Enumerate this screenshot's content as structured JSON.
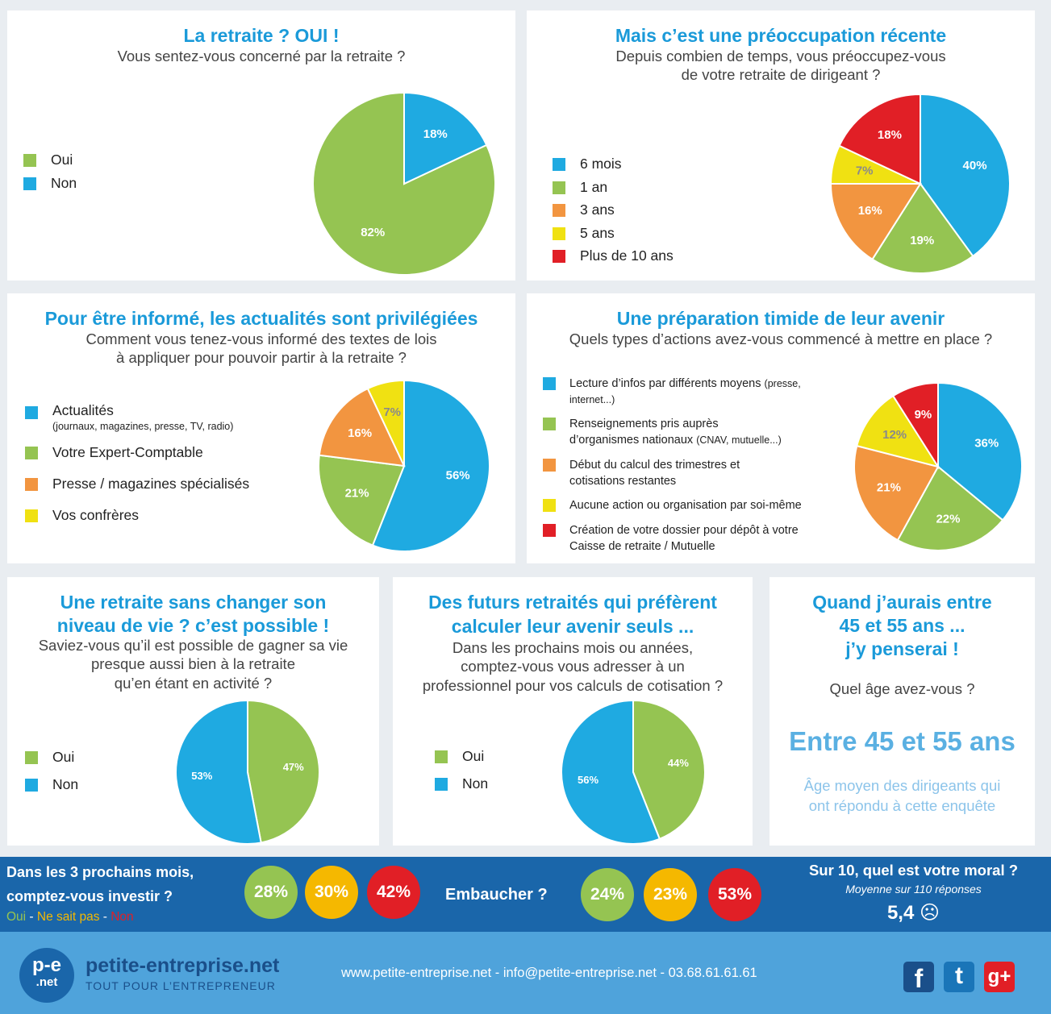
{
  "colors": {
    "blue": "#1faae1",
    "green": "#95c452",
    "orange": "#f29540",
    "yellow": "#f0e112",
    "red": "#e11f26",
    "title_blue": "#1a9ad9",
    "bar_blue": "#1a66aa",
    "footer_blue": "#4fa3db"
  },
  "p1": {
    "title": "La retraite ? OUI !",
    "subtitle": "Vous sentez-vous concerné par la retraite ?"
  },
  "p2": {
    "title": "Mais c’est une préoccupation récente",
    "subtitle1": "Depuis combien de temps, vous préoccupez-vous",
    "subtitle2": "de votre retraite de dirigeant ?"
  },
  "p3": {
    "title": "Pour être informé, les actualités sont privilégiées",
    "subtitle1": "Comment vous tenez-vous informé des textes de lois",
    "subtitle2": "à appliquer pour pouvoir partir à la retraite ?",
    "note0": "(journaux, magazines, presse, TV, radio)"
  },
  "p4": {
    "title": "Une préparation timide de leur avenir",
    "subtitle": "Quels types d’actions avez-vous commencé à mettre en place ?",
    "l0a": "Lecture d’infos par différents moyens",
    "l0b": "(presse,",
    "l0c": "internet...)",
    "l1a": "Renseignements pris auprès",
    "l1b": "d’organismes nationaux",
    "l1c": "(CNAV, mutuelle...)",
    "l2a": "Début du calcul des trimestres et",
    "l2b": "cotisations restantes",
    "l3a": "Aucune action ou organisation par soi-même",
    "l4a": "Création de votre dossier pour dépôt à votre",
    "l4b": "Caisse de retraite / Mutuelle"
  },
  "p5": {
    "title1": "Une retraite sans changer son",
    "title2": "niveau de vie ? c’est possible !",
    "sub1": "Saviez-vous qu’il est possible de gagner sa vie",
    "sub2": "presque aussi bien à la retraite",
    "sub3": "qu’en étant en activité ?"
  },
  "p6": {
    "title1": "Des futurs retraités qui préfèrent",
    "title2": "calculer leur avenir seuls ...",
    "sub1": "Dans les prochains mois ou années,",
    "sub2": "comptez-vous vous adresser à un",
    "sub3": "professionnel pour vos calculs de cotisation ?"
  },
  "p7": {
    "title1": "Quand j’aurais entre",
    "title2": "45 et 55 ans ...",
    "title3": "j’y penserai !",
    "question": "Quel âge avez-vous ?",
    "big": "Entre 45 et 55 ans",
    "note1": "Âge moyen des dirigeants qui",
    "note2": "ont répondu à cette enquête"
  },
  "bar": {
    "invest1": "Dans les 3 prochains mois,",
    "invest2": "comptez-vous investir ?",
    "oui": "Oui",
    "sep": " - ",
    "nsp": "Ne sait pas",
    "non": "Non",
    "invest_values": [
      "28%",
      "30%",
      "42%"
    ],
    "hire": "Embaucher ?",
    "hire_values": [
      "24%",
      "23%",
      "53%"
    ],
    "moral_title": "Sur 10, quel est votre moral ?",
    "moral_sub": "Moyenne sur 110 réponses",
    "moral_value": "5,4",
    "moral_icon": "☹"
  },
  "footer": {
    "logo_top": "p-e",
    "logo_bottom": ".net",
    "brand": "petite-entreprise.net",
    "tagline": "TOUT POUR L’ENTREPRENEUR",
    "contact": "www.petite-entreprise.net - info@petite-entreprise.net - 03.68.61.61.61",
    "facebook": "f",
    "twitter": "t",
    "gplus": "g+"
  },
  "chart_data": [
    {
      "type": "pie",
      "id": "c1",
      "title": "La retraite ? OUI !",
      "labels": [
        "Oui",
        "Non"
      ],
      "values": [
        82,
        18
      ],
      "value_labels": [
        "82%",
        "18%"
      ],
      "colors": [
        "#95c452",
        "#1faae1"
      ]
    },
    {
      "type": "pie",
      "id": "c2",
      "title": "Mais c’est une préoccupation récente",
      "labels": [
        "6 mois",
        "1 an",
        "3 ans",
        "5 ans",
        "Plus de 10 ans"
      ],
      "values": [
        40,
        19,
        16,
        7,
        18
      ],
      "value_labels": [
        "40%",
        "19%",
        "16%",
        "7%",
        "18%"
      ],
      "colors": [
        "#1faae1",
        "#95c452",
        "#f29540",
        "#f0e112",
        "#e11f26"
      ]
    },
    {
      "type": "pie",
      "id": "c3",
      "title": "Pour être informé, les actualités sont privilégiées",
      "labels": [
        "Actualités",
        "Votre Expert-Comptable",
        "Presse / magazines spécialisés",
        "Vos confrères"
      ],
      "values": [
        56,
        21,
        16,
        7
      ],
      "value_labels": [
        "56%",
        "21%",
        "16%",
        "7%"
      ],
      "colors": [
        "#1faae1",
        "#95c452",
        "#f29540",
        "#f0e112"
      ]
    },
    {
      "type": "pie",
      "id": "c4",
      "title": "Une préparation timide de leur avenir",
      "labels": [
        "Lecture d’infos par différents moyens",
        "Renseignements pris auprès d’organismes nationaux",
        "Début du calcul des trimestres et cotisations restantes",
        "Aucune action ou organisation par soi-même",
        "Création de votre dossier pour dépôt à votre Caisse de retraite / Mutuelle"
      ],
      "values": [
        36,
        22,
        21,
        12,
        9
      ],
      "value_labels": [
        "36%",
        "22%",
        "21%",
        "12%",
        "9%"
      ],
      "colors": [
        "#1faae1",
        "#95c452",
        "#f29540",
        "#f0e112",
        "#e11f26"
      ]
    },
    {
      "type": "pie",
      "id": "c5",
      "title": "Une retraite sans changer son niveau de vie ? c’est possible !",
      "labels": [
        "Oui",
        "Non"
      ],
      "values": [
        47,
        53
      ],
      "value_labels": [
        "47%",
        "53%"
      ],
      "colors": [
        "#95c452",
        "#1faae1"
      ]
    },
    {
      "type": "pie",
      "id": "c6",
      "title": "Des futurs retraités qui préfèrent calculer leur avenir seuls ...",
      "labels": [
        "Oui",
        "Non"
      ],
      "values": [
        44,
        56
      ],
      "value_labels": [
        "44%",
        "56%"
      ],
      "colors": [
        "#95c452",
        "#1faae1"
      ]
    }
  ]
}
